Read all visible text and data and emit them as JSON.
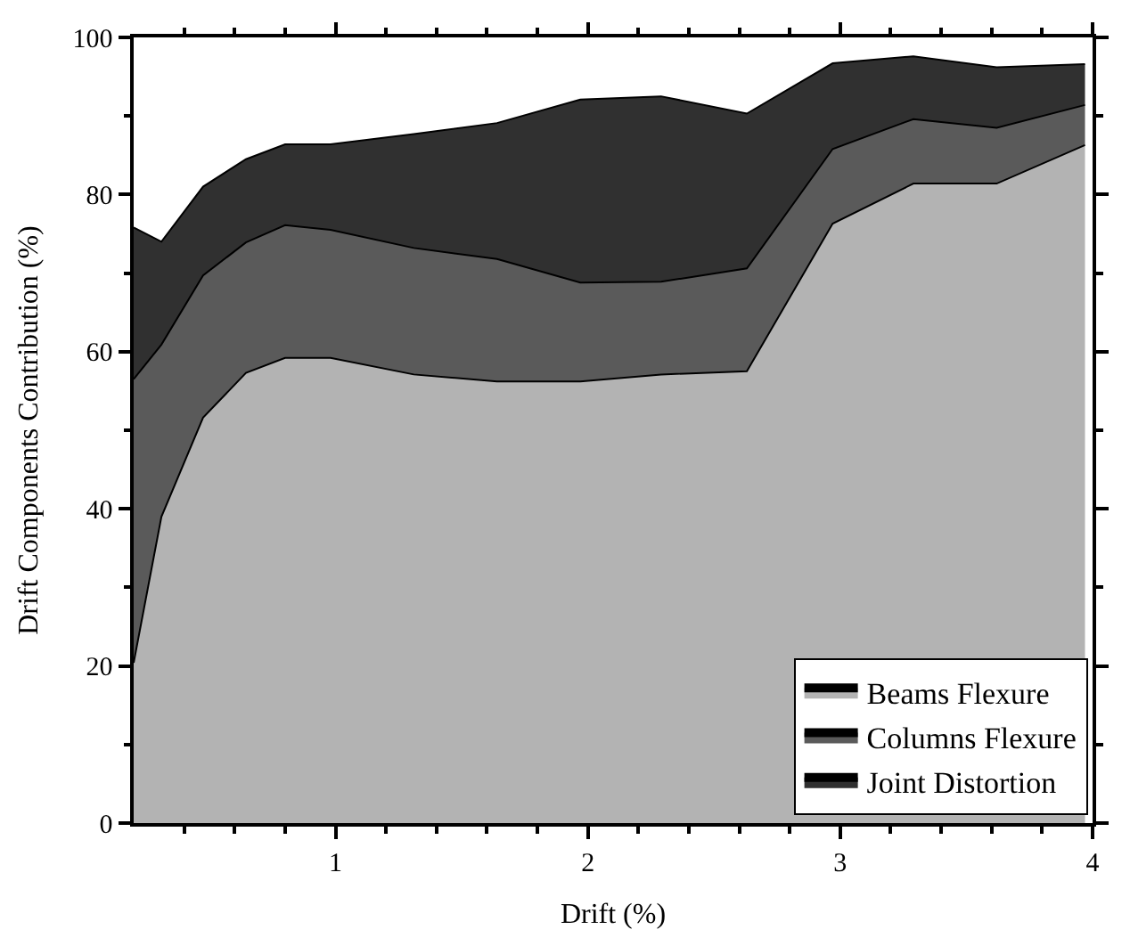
{
  "chart_data": {
    "type": "area",
    "stacked": true,
    "xlabel": "Drift (%)",
    "ylabel": "Drift Components Contribution (%)",
    "x": [
      0.2,
      0.31,
      0.475,
      0.645,
      0.8,
      0.98,
      1.31,
      1.64,
      1.97,
      2.29,
      2.63,
      2.97,
      3.29,
      3.62,
      3.97
    ],
    "series": [
      {
        "name": "Beams Flexure",
        "color": "#b3b3b3",
        "values": [
          20.4,
          39.0,
          51.6,
          57.3,
          59.2,
          59.2,
          57.1,
          56.2,
          56.2,
          57.1,
          57.5,
          76.3,
          81.4,
          81.4,
          86.3
        ]
      },
      {
        "name": "Columns Flexure",
        "color": "#5a5a5a",
        "values": [
          36.1,
          21.9,
          18.1,
          16.6,
          16.9,
          16.3,
          16.1,
          15.6,
          12.6,
          11.8,
          13.1,
          9.5,
          8.2,
          7.1,
          5.1
        ]
      },
      {
        "name": "Joint Distortion",
        "color": "#303030",
        "values": [
          19.3,
          13.1,
          11.3,
          10.6,
          10.3,
          10.9,
          14.5,
          17.3,
          23.3,
          23.6,
          19.7,
          10.9,
          8.0,
          7.7,
          5.2
        ]
      }
    ],
    "xlim": [
      0.2,
      4.0
    ],
    "ylim": [
      0,
      100
    ],
    "xticks": [
      {
        "value": 0.4,
        "label": null
      },
      {
        "value": 0.6,
        "label": null
      },
      {
        "value": 0.8,
        "label": null
      },
      1,
      {
        "value": 1.2,
        "label": null
      },
      {
        "value": 1.4,
        "label": null
      },
      {
        "value": 1.6,
        "label": null
      },
      {
        "value": 1.8,
        "label": null
      },
      2,
      {
        "value": 2.2,
        "label": null
      },
      {
        "value": 2.4,
        "label": null
      },
      {
        "value": 2.6,
        "label": null
      },
      {
        "value": 2.8,
        "label": null
      },
      3,
      {
        "value": 3.2,
        "label": null
      },
      {
        "value": 3.4,
        "label": null
      },
      {
        "value": 3.6,
        "label": null
      },
      {
        "value": 3.8,
        "label": null
      },
      4
    ],
    "yticks": [
      0,
      {
        "value": 10,
        "label": null
      },
      20,
      {
        "value": 30,
        "label": null
      },
      40,
      {
        "value": 50,
        "label": null
      },
      60,
      {
        "value": 70,
        "label": null
      },
      80,
      {
        "value": 90,
        "label": null
      },
      100
    ],
    "legend": "bottom right",
    "marker": "none",
    "line_style": "solid"
  }
}
